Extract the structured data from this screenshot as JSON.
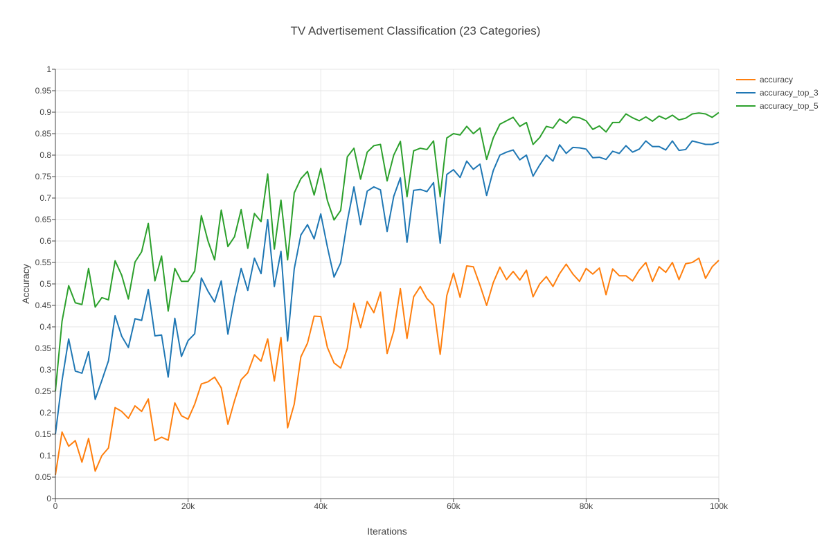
{
  "chart_data": {
    "type": "line",
    "title": "TV Advertisement Classification (23 Categories)",
    "xlabel": "Iterations",
    "ylabel": "Accuracy",
    "xlim": [
      0,
      100000
    ],
    "ylim": [
      0,
      1
    ],
    "grid": true,
    "legend_position": "top-right",
    "x_ticks": [
      {
        "value": 0,
        "label": "0"
      },
      {
        "value": 20000,
        "label": "20k"
      },
      {
        "value": 40000,
        "label": "40k"
      },
      {
        "value": 60000,
        "label": "60k"
      },
      {
        "value": 80000,
        "label": "80k"
      },
      {
        "value": 100000,
        "label": "100k"
      }
    ],
    "y_ticks": [
      {
        "value": 0,
        "label": "0"
      },
      {
        "value": 0.05,
        "label": "0.05"
      },
      {
        "value": 0.1,
        "label": "0.1"
      },
      {
        "value": 0.15,
        "label": "0.15"
      },
      {
        "value": 0.2,
        "label": "0.2"
      },
      {
        "value": 0.25,
        "label": "0.25"
      },
      {
        "value": 0.3,
        "label": "0.3"
      },
      {
        "value": 0.35,
        "label": "0.35"
      },
      {
        "value": 0.4,
        "label": "0.4"
      },
      {
        "value": 0.45,
        "label": "0.45"
      },
      {
        "value": 0.5,
        "label": "0.5"
      },
      {
        "value": 0.55,
        "label": "0.55"
      },
      {
        "value": 0.6,
        "label": "0.6"
      },
      {
        "value": 0.65,
        "label": "0.65"
      },
      {
        "value": 0.7,
        "label": "0.7"
      },
      {
        "value": 0.75,
        "label": "0.75"
      },
      {
        "value": 0.8,
        "label": "0.8"
      },
      {
        "value": 0.85,
        "label": "0.85"
      },
      {
        "value": 0.9,
        "label": "0.9"
      },
      {
        "value": 0.95,
        "label": "0.95"
      },
      {
        "value": 1,
        "label": "1"
      }
    ],
    "x": [
      0,
      1000,
      2000,
      3000,
      4000,
      5000,
      6000,
      7000,
      8000,
      9000,
      10000,
      11000,
      12000,
      13000,
      14000,
      15000,
      16000,
      17000,
      18000,
      19000,
      20000,
      21000,
      22000,
      23000,
      24000,
      25000,
      26000,
      27000,
      28000,
      29000,
      30000,
      31000,
      32000,
      33000,
      34000,
      35000,
      36000,
      37000,
      38000,
      39000,
      40000,
      41000,
      42000,
      43000,
      44000,
      45000,
      46000,
      47000,
      48000,
      49000,
      50000,
      51000,
      52000,
      53000,
      54000,
      55000,
      56000,
      57000,
      58000,
      59000,
      60000,
      61000,
      62000,
      63000,
      64000,
      65000,
      66000,
      67000,
      68000,
      69000,
      70000,
      71000,
      72000,
      73000,
      74000,
      75000,
      76000,
      77000,
      78000,
      79000,
      80000,
      81000,
      82000,
      83000,
      84000,
      85000,
      86000,
      87000,
      88000,
      89000,
      90000,
      91000,
      92000,
      93000,
      94000,
      95000,
      96000,
      97000,
      98000,
      99000,
      100000
    ],
    "series": [
      {
        "name": "accuracy",
        "color": "#ff7f0e",
        "values": [
          0.055,
          0.155,
          0.122,
          0.135,
          0.085,
          0.14,
          0.064,
          0.1,
          0.118,
          0.212,
          0.203,
          0.187,
          0.216,
          0.203,
          0.232,
          0.135,
          0.143,
          0.136,
          0.223,
          0.193,
          0.185,
          0.22,
          0.267,
          0.272,
          0.283,
          0.258,
          0.173,
          0.228,
          0.277,
          0.293,
          0.335,
          0.32,
          0.372,
          0.274,
          0.375,
          0.165,
          0.22,
          0.33,
          0.362,
          0.425,
          0.424,
          0.352,
          0.316,
          0.304,
          0.35,
          0.455,
          0.398,
          0.459,
          0.433,
          0.481,
          0.338,
          0.39,
          0.489,
          0.373,
          0.47,
          0.494,
          0.466,
          0.45,
          0.336,
          0.473,
          0.525,
          0.469,
          0.542,
          0.54,
          0.497,
          0.45,
          0.503,
          0.539,
          0.51,
          0.529,
          0.509,
          0.532,
          0.47,
          0.5,
          0.517,
          0.494,
          0.524,
          0.546,
          0.523,
          0.506,
          0.536,
          0.523,
          0.537,
          0.475,
          0.535,
          0.519,
          0.519,
          0.507,
          0.532,
          0.55,
          0.506,
          0.54,
          0.527,
          0.55,
          0.51,
          0.547,
          0.55,
          0.56,
          0.513,
          0.54,
          0.555
        ]
      },
      {
        "name": "accuracy_top_3",
        "color": "#1f77b4",
        "values": [
          0.15,
          0.275,
          0.372,
          0.297,
          0.292,
          0.342,
          0.231,
          0.275,
          0.321,
          0.426,
          0.378,
          0.352,
          0.419,
          0.415,
          0.487,
          0.379,
          0.381,
          0.283,
          0.42,
          0.331,
          0.368,
          0.384,
          0.514,
          0.483,
          0.458,
          0.507,
          0.383,
          0.467,
          0.536,
          0.485,
          0.56,
          0.524,
          0.65,
          0.494,
          0.576,
          0.367,
          0.535,
          0.614,
          0.638,
          0.605,
          0.663,
          0.586,
          0.516,
          0.549,
          0.646,
          0.726,
          0.638,
          0.716,
          0.726,
          0.719,
          0.622,
          0.704,
          0.747,
          0.597,
          0.718,
          0.72,
          0.715,
          0.736,
          0.595,
          0.755,
          0.766,
          0.748,
          0.786,
          0.767,
          0.779,
          0.706,
          0.764,
          0.8,
          0.807,
          0.812,
          0.789,
          0.8,
          0.751,
          0.777,
          0.8,
          0.786,
          0.824,
          0.804,
          0.818,
          0.817,
          0.814,
          0.794,
          0.795,
          0.79,
          0.809,
          0.804,
          0.822,
          0.807,
          0.814,
          0.833,
          0.82,
          0.82,
          0.812,
          0.833,
          0.811,
          0.813,
          0.833,
          0.829,
          0.825,
          0.825,
          0.83
        ]
      },
      {
        "name": "accuracy_top_5",
        "color": "#2ca02c",
        "values": [
          0.25,
          0.413,
          0.496,
          0.456,
          0.452,
          0.536,
          0.446,
          0.468,
          0.463,
          0.554,
          0.52,
          0.465,
          0.551,
          0.575,
          0.641,
          0.507,
          0.565,
          0.437,
          0.536,
          0.506,
          0.506,
          0.53,
          0.659,
          0.6,
          0.556,
          0.672,
          0.587,
          0.61,
          0.673,
          0.583,
          0.664,
          0.645,
          0.756,
          0.581,
          0.695,
          0.556,
          0.712,
          0.745,
          0.762,
          0.707,
          0.769,
          0.694,
          0.649,
          0.671,
          0.796,
          0.816,
          0.744,
          0.807,
          0.822,
          0.825,
          0.74,
          0.8,
          0.832,
          0.703,
          0.81,
          0.816,
          0.813,
          0.833,
          0.703,
          0.84,
          0.85,
          0.847,
          0.867,
          0.85,
          0.863,
          0.79,
          0.84,
          0.872,
          0.88,
          0.888,
          0.867,
          0.876,
          0.825,
          0.841,
          0.867,
          0.863,
          0.884,
          0.874,
          0.889,
          0.887,
          0.88,
          0.86,
          0.868,
          0.854,
          0.876,
          0.876,
          0.896,
          0.887,
          0.88,
          0.889,
          0.879,
          0.891,
          0.884,
          0.893,
          0.882,
          0.886,
          0.896,
          0.898,
          0.896,
          0.888,
          0.899
        ]
      }
    ]
  }
}
